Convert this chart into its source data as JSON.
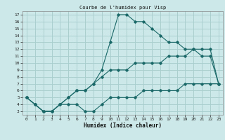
{
  "title": "Courbe de l'humidex pour Visp",
  "xlabel": "Humidex (Indice chaleur)",
  "bg_color": "#cce8e8",
  "grid_color": "#aacece",
  "line_color": "#1a6868",
  "xlim": [
    -0.5,
    23.5
  ],
  "ylim": [
    2.5,
    17.5
  ],
  "xticks": [
    0,
    1,
    2,
    3,
    4,
    5,
    6,
    7,
    8,
    9,
    10,
    11,
    12,
    13,
    14,
    15,
    16,
    17,
    18,
    19,
    20,
    21,
    22,
    23
  ],
  "yticks": [
    3,
    4,
    5,
    6,
    7,
    8,
    9,
    10,
    11,
    12,
    13,
    14,
    15,
    16,
    17
  ],
  "line_bottom": {
    "x": [
      0,
      1,
      2,
      3,
      4,
      5,
      6,
      7,
      8,
      9,
      10,
      11,
      12,
      13,
      14,
      15,
      16,
      17,
      18,
      19,
      20,
      21,
      22,
      23
    ],
    "y": [
      5,
      4,
      3,
      3,
      4,
      4,
      4,
      3,
      3,
      4,
      5,
      5,
      5,
      5,
      6,
      6,
      6,
      6,
      6,
      7,
      7,
      7,
      7,
      7
    ]
  },
  "line_mid": {
    "x": [
      0,
      1,
      2,
      3,
      4,
      5,
      6,
      7,
      8,
      9,
      10,
      11,
      12,
      13,
      14,
      15,
      16,
      17,
      18,
      19,
      20,
      21,
      22,
      23
    ],
    "y": [
      5,
      4,
      3,
      3,
      4,
      5,
      6,
      6,
      7,
      8,
      9,
      9,
      9,
      10,
      10,
      10,
      10,
      11,
      11,
      11,
      12,
      12,
      12,
      7
    ]
  },
  "line_top": {
    "x": [
      0,
      1,
      2,
      3,
      4,
      5,
      6,
      7,
      8,
      9,
      10,
      11,
      12,
      13,
      14,
      15,
      16,
      17,
      18,
      19,
      20,
      21,
      22,
      23
    ],
    "y": [
      5,
      4,
      3,
      3,
      4,
      5,
      6,
      6,
      7,
      9,
      13,
      17,
      17,
      16,
      16,
      15,
      14,
      13,
      13,
      12,
      12,
      11,
      11,
      7
    ]
  }
}
